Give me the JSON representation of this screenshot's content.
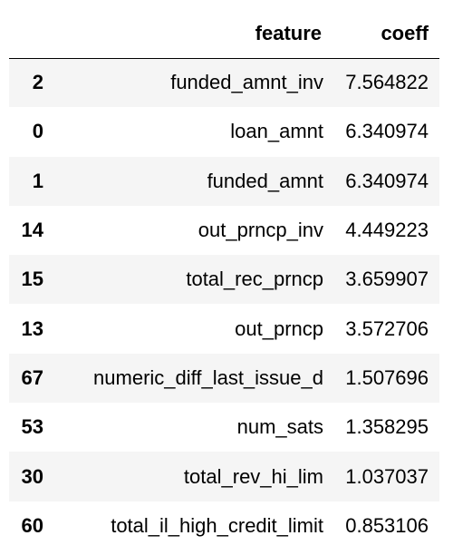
{
  "table": {
    "columns": [
      "",
      "feature",
      "coeff"
    ],
    "rows": [
      {
        "index": "2",
        "feature": "funded_amnt_inv",
        "coeff": "7.564822"
      },
      {
        "index": "0",
        "feature": "loan_amnt",
        "coeff": "6.340974"
      },
      {
        "index": "1",
        "feature": "funded_amnt",
        "coeff": "6.340974"
      },
      {
        "index": "14",
        "feature": "out_prncp_inv",
        "coeff": "4.449223"
      },
      {
        "index": "15",
        "feature": "total_rec_prncp",
        "coeff": "3.659907"
      },
      {
        "index": "13",
        "feature": "out_prncp",
        "coeff": "3.572706"
      },
      {
        "index": "67",
        "feature": "numeric_diff_last_issue_d",
        "coeff": "1.507696"
      },
      {
        "index": "53",
        "feature": "num_sats",
        "coeff": "1.358295"
      },
      {
        "index": "30",
        "feature": "total_rev_hi_lim",
        "coeff": "1.037037"
      },
      {
        "index": "60",
        "feature": "total_il_high_credit_limit",
        "coeff": "0.853106"
      }
    ]
  },
  "colors": {
    "stripe": "#f5f5f5",
    "background": "#ffffff",
    "text": "#000000"
  }
}
